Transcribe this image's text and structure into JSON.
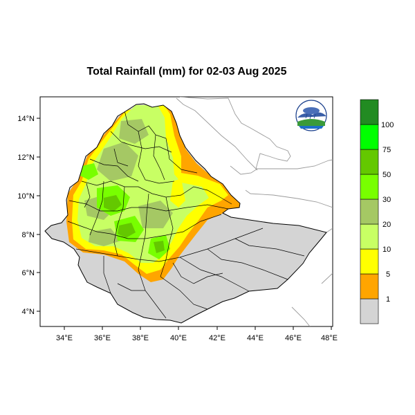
{
  "title": "Total Rainfall (mm) for 02-03 Aug 2025",
  "x_ticks": [
    "34°E",
    "36°E",
    "38°E",
    "40°E",
    "42°E",
    "44°E",
    "46°E",
    "48°E"
  ],
  "y_ticks": [
    "14°N",
    "12°N",
    "10°N",
    "8°N",
    "6°N",
    "4°N"
  ],
  "legend": {
    "labels": [
      "1",
      "5",
      "10",
      "20",
      "30",
      "50",
      "75",
      "100"
    ],
    "colors": [
      "#d4d4d4",
      "#ffa500",
      "#ffff00",
      "#c8ff64",
      "#a5c864",
      "#78ff00",
      "#64c800",
      "#00ff00",
      "#228b22"
    ]
  },
  "colors": {
    "land_gray": "#d4d4d4",
    "outline": "#000000",
    "neighbor_line": "#9a9a9a"
  },
  "logo_icon": "agency-logo-icon"
}
